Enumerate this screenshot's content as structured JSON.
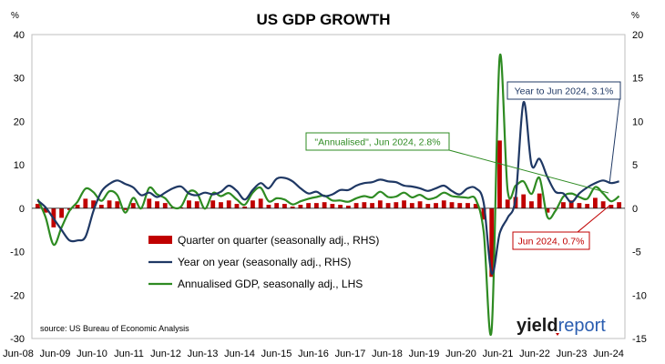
{
  "chart_data": {
    "type": "line",
    "title": "US GDP GROWTH",
    "left_unit": "%",
    "right_unit": "%",
    "left_axis": {
      "min": -30,
      "max": 40,
      "ticks": [
        40,
        30,
        20,
        10,
        0,
        -10,
        -20,
        -30
      ]
    },
    "right_axis": {
      "min": -15,
      "max": 20,
      "ticks": [
        20,
        15,
        10,
        5,
        0,
        -5,
        -10,
        -15
      ]
    },
    "x_tick_labels": [
      "Jun-08",
      "Jun-09",
      "Jun-10",
      "Jun-11",
      "Jun-12",
      "Jun-13",
      "Jun-14",
      "Jun-15",
      "Jun-16",
      "Jun-17",
      "Jun-18",
      "Jun-19",
      "Jun-20",
      "Jun-21",
      "Jun-22",
      "Jun-23",
      "Jun-24"
    ],
    "grid": false,
    "colors": {
      "bars": "#c00000",
      "yoy": "#1f3864",
      "annualised": "#2e8b22"
    },
    "series": [
      {
        "name": "Quarter on quarter (seasonally adj., RHS)",
        "kind": "bar",
        "axis": "right",
        "values": [
          0.5,
          -0.5,
          -2.2,
          -1.1,
          -0.2,
          0.4,
          1.1,
          0.9,
          0.4,
          0.9,
          0.8,
          -0.2,
          0.6,
          0.0,
          1.1,
          0.8,
          0.6,
          0.1,
          0.1,
          0.9,
          0.8,
          0.0,
          0.9,
          0.7,
          0.9,
          0.5,
          0.2,
          0.9,
          1.1,
          0.4,
          0.6,
          0.5,
          0.2,
          0.4,
          0.6,
          0.6,
          0.7,
          0.5,
          0.4,
          0.3,
          0.6,
          0.7,
          0.6,
          0.9,
          0.6,
          0.7,
          0.9,
          0.6,
          0.8,
          0.5,
          0.6,
          0.9,
          0.7,
          0.6,
          0.6,
          0.5,
          -1.3,
          -7.9,
          7.8,
          1.0,
          1.3,
          1.6,
          0.8,
          1.7,
          -0.5,
          -0.1,
          0.7,
          0.9,
          0.6,
          0.5,
          1.2,
          0.8,
          0.4,
          0.7
        ]
      },
      {
        "name": "Year on year (seasonally adj., RHS)",
        "kind": "line",
        "axis": "right",
        "values": [
          0.9,
          0.1,
          -1.2,
          -2.5,
          -3.7,
          -3.7,
          -3.3,
          -0.3,
          1.9,
          2.8,
          3.2,
          2.8,
          2.4,
          1.5,
          1.8,
          1.3,
          1.8,
          2.3,
          2.5,
          1.7,
          1.5,
          1.8,
          1.6,
          1.9,
          2.6,
          2.0,
          1.0,
          2.1,
          2.9,
          2.3,
          3.4,
          3.5,
          3.1,
          2.3,
          1.7,
          1.9,
          1.4,
          1.6,
          2.1,
          2.1,
          2.6,
          2.9,
          3.0,
          3.3,
          3.1,
          3.0,
          2.6,
          2.5,
          2.3,
          2.0,
          2.3,
          2.6,
          2.0,
          1.6,
          2.3,
          2.3,
          0.6,
          -7.5,
          -2.9,
          -1.1,
          1.2,
          12.2,
          5.0,
          5.7,
          3.6,
          1.9,
          1.7,
          0.7,
          1.7,
          2.4,
          2.9,
          3.2,
          2.9,
          3.1
        ]
      },
      {
        "name": "Annualised GDP, seasonally adj., LHS",
        "kind": "line",
        "axis": "left",
        "values": [
          2.1,
          -2.1,
          -8.4,
          -4.4,
          -0.6,
          1.5,
          4.5,
          3.7,
          1.7,
          3.9,
          3.0,
          -1.0,
          2.4,
          0.0,
          4.7,
          3.2,
          2.3,
          0.2,
          0.4,
          3.8,
          3.5,
          -0.1,
          3.5,
          2.8,
          3.5,
          2.0,
          0.8,
          3.6,
          4.7,
          1.6,
          2.3,
          2.0,
          0.9,
          1.6,
          2.2,
          2.6,
          2.9,
          1.8,
          1.8,
          1.5,
          2.3,
          2.8,
          2.5,
          3.8,
          2.6,
          2.7,
          3.6,
          2.5,
          3.1,
          2.1,
          2.5,
          3.6,
          2.8,
          2.6,
          2.4,
          2.0,
          -5.5,
          -28.0,
          34.8,
          4.2,
          5.2,
          6.2,
          3.3,
          7.0,
          -2.0,
          -0.6,
          2.7,
          3.4,
          2.6,
          2.2,
          4.9,
          3.4,
          1.6,
          2.8
        ]
      }
    ],
    "legend": {
      "placement": "center-left",
      "items": [
        "Quarter on quarter (seasonally adj., RHS)",
        "Year on year (seasonally adj., RHS)",
        "Annualised GDP, seasonally adj., LHS"
      ]
    },
    "annotations": [
      {
        "text": "Year to Jun 2024, 3.1%",
        "color": "#1f3864",
        "axis": "right",
        "value": 3.1
      },
      {
        "text": "\"Annualised\", Jun 2024, 2.8%",
        "color": "#2e8b22",
        "axis": "left",
        "value": 2.8
      },
      {
        "text": "Jun 2024, 0.7%",
        "color": "#c00000",
        "axis": "right",
        "value": 0.7
      }
    ],
    "source": "source: US Bureau of Economic Analysis",
    "logo": {
      "part_a": "yield",
      "part_b": "report"
    }
  }
}
